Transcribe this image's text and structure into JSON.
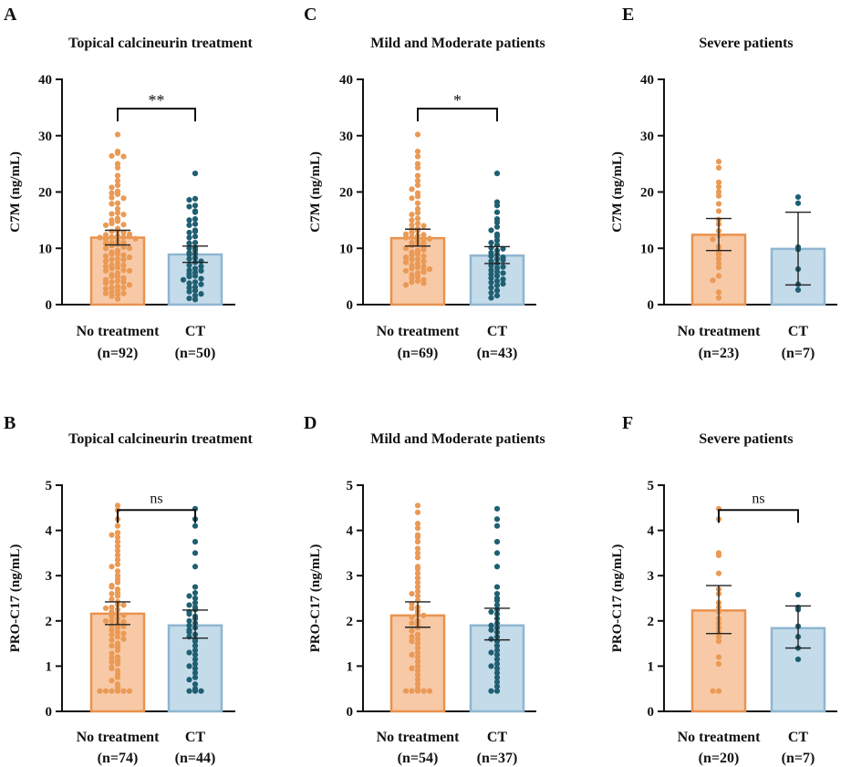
{
  "chart_data": [
    {
      "panel": "A",
      "type": "bar",
      "title": "Topical calcineurin treatment",
      "ylabel": "C7M (ng/mL)",
      "ylim": [
        0,
        40
      ],
      "yticks": [
        0,
        10,
        20,
        30,
        40
      ],
      "categories": [
        "No treatment",
        "CT"
      ],
      "category_n": [
        "(n=92)",
        "(n=50)"
      ],
      "means": [
        11.9,
        8.9
      ],
      "ci_low": [
        10.6,
        7.5
      ],
      "ci_high": [
        13.2,
        10.4
      ],
      "significance": "**",
      "colors": {
        "bar_fill": [
          "#f7c9a6",
          "#c4dbe9"
        ],
        "bar_edge": [
          "#e8924f",
          "#8fb6d1"
        ],
        "dots": [
          "#ea9a55",
          "#1f5f72"
        ]
      },
      "points": [
        [
          30.2,
          27.2,
          26.9,
          26.4,
          26.3,
          25.0,
          24.3,
          22.9,
          22.0,
          21.2,
          20.8,
          20.1,
          19.8,
          19.6,
          19.0,
          18.9,
          18.0,
          17.9,
          17.0,
          16.3,
          16.1,
          16.0,
          15.3,
          15.0,
          14.8,
          14.4,
          14.2,
          14.1,
          13.5,
          13.1,
          13.0,
          12.8,
          12.4,
          12.2,
          12.0,
          12.0,
          11.6,
          11.3,
          11.0,
          11.0,
          10.9,
          10.7,
          10.5,
          10.2,
          10.0,
          10.0,
          9.6,
          9.3,
          9.0,
          9.0,
          8.8,
          8.6,
          8.4,
          8.1,
          8.0,
          8.0,
          7.7,
          7.3,
          7.0,
          7.0,
          6.8,
          6.6,
          6.4,
          6.1,
          6.0,
          6.0,
          5.6,
          5.3,
          5.0,
          5.0,
          4.7,
          4.4,
          4.2,
          4.0,
          4.0,
          3.8,
          3.5,
          3.2,
          3.0,
          3.0,
          2.8,
          2.5,
          2.2,
          2.0,
          2.0,
          1.8,
          1.5,
          1.0,
          12.5,
          12.1,
          11.9,
          11.7
        ],
        [
          23.3,
          18.8,
          18.6,
          17.6,
          17.4,
          16.6,
          16.4,
          15.2,
          15.0,
          14.3,
          14.1,
          13.2,
          13.0,
          12.1,
          11.9,
          11.0,
          10.9,
          10.1,
          10.0,
          9.6,
          9.2,
          9.0,
          8.9,
          8.3,
          8.1,
          7.7,
          7.5,
          7.0,
          6.8,
          6.4,
          6.1,
          6.0,
          5.7,
          5.5,
          5.1,
          5.0,
          4.6,
          4.4,
          4.0,
          3.8,
          3.6,
          3.1,
          3.0,
          2.5,
          2.3,
          1.9,
          1.6,
          1.1,
          0.9,
          12.8
        ]
      ]
    },
    {
      "panel": "C",
      "type": "bar",
      "title": "Mild and Moderate patients",
      "ylabel": "C7M (ng/mL)",
      "ylim": [
        0,
        40
      ],
      "yticks": [
        0,
        10,
        20,
        30,
        40
      ],
      "categories": [
        "No treatment",
        "CT"
      ],
      "category_n": [
        "(n=69)",
        "(n=43)"
      ],
      "means": [
        11.8,
        8.7
      ],
      "ci_low": [
        10.4,
        7.3
      ],
      "ci_high": [
        13.4,
        10.3
      ],
      "significance": "*",
      "colors": {
        "bar_fill": [
          "#f7c9a6",
          "#c4dbe9"
        ],
        "bar_edge": [
          "#e8924f",
          "#8fb6d1"
        ],
        "dots": [
          "#ea9a55",
          "#1f5f72"
        ]
      },
      "points": [
        [
          30.2,
          27.2,
          26.3,
          25.0,
          24.3,
          22.9,
          22.0,
          21.2,
          20.5,
          19.8,
          19.2,
          18.9,
          18.0,
          17.0,
          16.3,
          16.0,
          15.3,
          15.0,
          14.4,
          14.1,
          13.5,
          13.1,
          12.8,
          12.4,
          12.2,
          12.0,
          11.6,
          11.3,
          11.0,
          10.9,
          10.7,
          10.5,
          10.2,
          10.0,
          9.6,
          9.3,
          9.0,
          8.8,
          8.6,
          8.4,
          8.1,
          8.0,
          7.7,
          7.3,
          7.0,
          6.8,
          6.6,
          6.4,
          6.1,
          6.0,
          5.6,
          5.3,
          5.0,
          4.7,
          4.4,
          4.2,
          4.0,
          3.8,
          3.5,
          11.9,
          11.7,
          12.5,
          13.3,
          14.0,
          9.7,
          8.3,
          7.5,
          6.3,
          5.8
        ],
        [
          23.3,
          18.2,
          17.6,
          16.4,
          15.2,
          14.6,
          13.8,
          13.2,
          12.5,
          12.1,
          11.4,
          11.0,
          10.6,
          10.1,
          9.6,
          9.2,
          8.9,
          8.6,
          8.1,
          7.7,
          7.3,
          6.9,
          6.5,
          6.1,
          5.8,
          5.4,
          5.1,
          4.7,
          4.2,
          3.9,
          3.4,
          3.0,
          2.5,
          2.1,
          1.6,
          1.2,
          9.9,
          8.4,
          7.9,
          6.7,
          5.6,
          4.5,
          3.7
        ]
      ]
    },
    {
      "panel": "E",
      "type": "bar",
      "title": "Severe patients",
      "ylabel": "C7M (ng/mL)",
      "ylim": [
        0,
        40
      ],
      "yticks": [
        0,
        10,
        20,
        30,
        40
      ],
      "categories": [
        "No treatment",
        "CT"
      ],
      "category_n": [
        "(n=23)",
        "(n=7)"
      ],
      "means": [
        12.4,
        9.9
      ],
      "ci_low": [
        9.6,
        3.5
      ],
      "ci_high": [
        15.3,
        16.4
      ],
      "significance": "",
      "colors": {
        "bar_fill": [
          "#f7c9a6",
          "#c4dbe9"
        ],
        "bar_edge": [
          "#e8924f",
          "#8fb6d1"
        ],
        "dots": [
          "#ea9a55",
          "#1f5f72"
        ]
      },
      "points": [
        [
          25.4,
          24.3,
          21.7,
          20.9,
          20.0,
          19.3,
          17.9,
          16.6,
          15.1,
          14.3,
          13.1,
          12.3,
          11.6,
          10.3,
          9.6,
          8.9,
          8.1,
          7.3,
          6.6,
          5.1,
          4.3,
          2.2,
          1.2
        ],
        [
          19.1,
          18.0,
          10.2,
          9.8,
          6.3,
          3.6,
          2.6
        ]
      ]
    },
    {
      "panel": "B",
      "type": "bar",
      "title": "Topical calcineurin treatment",
      "ylabel": "PRO-C17 (ng/mL)",
      "ylim": [
        0,
        5
      ],
      "yticks": [
        0,
        1,
        2,
        3,
        4,
        5
      ],
      "categories": [
        "No treatment",
        "CT"
      ],
      "category_n": [
        "(n=74)",
        "(n=44)"
      ],
      "means": [
        2.16,
        1.9
      ],
      "ci_low": [
        1.92,
        1.62
      ],
      "ci_high": [
        2.42,
        2.24
      ],
      "significance": "ns",
      "colors": {
        "bar_fill": [
          "#f7c9a6",
          "#c4dbe9"
        ],
        "bar_edge": [
          "#e8924f",
          "#8fb6d1"
        ],
        "dots": [
          "#ea9a55",
          "#1f5f72"
        ]
      },
      "points": [
        [
          4.55,
          4.45,
          4.25,
          4.1,
          3.95,
          3.9,
          3.85,
          3.75,
          3.65,
          3.55,
          3.45,
          3.35,
          3.25,
          3.1,
          3.0,
          2.92,
          2.85,
          2.78,
          2.7,
          2.62,
          2.55,
          2.48,
          2.42,
          2.36,
          2.3,
          2.25,
          2.2,
          2.15,
          2.1,
          2.05,
          2.0,
          1.95,
          1.9,
          1.85,
          1.8,
          1.75,
          1.7,
          1.65,
          1.58,
          1.5,
          1.42,
          1.35,
          1.28,
          1.2,
          1.12,
          1.05,
          0.98,
          0.9,
          0.82,
          0.75,
          0.68,
          0.6,
          0.52,
          0.45,
          0.45,
          0.45,
          0.45,
          0.45,
          0.45,
          2.35,
          2.28,
          2.12,
          1.98,
          1.88,
          1.6,
          1.45,
          1.18,
          2.6,
          2.75,
          3.2,
          2.0,
          1.72,
          1.1,
          0.95
        ],
        [
          4.48,
          4.25,
          4.1,
          3.75,
          3.5,
          3.2,
          2.75,
          2.62,
          2.5,
          2.4,
          2.3,
          2.25,
          2.2,
          2.1,
          2.05,
          2.0,
          1.95,
          1.85,
          1.8,
          1.7,
          1.6,
          1.55,
          1.45,
          1.35,
          1.25,
          1.15,
          1.05,
          0.95,
          0.85,
          0.75,
          0.7,
          0.6,
          0.5,
          0.45,
          0.45,
          0.45,
          2.15,
          1.9,
          1.65,
          1.3,
          1.0,
          2.55,
          2.35,
          1.75
        ]
      ]
    },
    {
      "panel": "D",
      "type": "bar",
      "title": "Mild and Moderate patients",
      "ylabel": "PRO-C17 (ng/mL)",
      "ylim": [
        0,
        5
      ],
      "yticks": [
        0,
        1,
        2,
        3,
        4,
        5
      ],
      "categories": [
        "No treatment",
        "CT"
      ],
      "category_n": [
        "(n=54)",
        "(n=37)"
      ],
      "means": [
        2.12,
        1.9
      ],
      "ci_low": [
        1.86,
        1.58
      ],
      "ci_high": [
        2.42,
        2.28
      ],
      "significance": "",
      "colors": {
        "bar_fill": [
          "#f7c9a6",
          "#c4dbe9"
        ],
        "bar_edge": [
          "#e8924f",
          "#8fb6d1"
        ],
        "dots": [
          "#ea9a55",
          "#1f5f72"
        ]
      },
      "points": [
        [
          4.55,
          4.4,
          4.15,
          4.05,
          3.9,
          3.85,
          3.75,
          3.6,
          3.5,
          3.4,
          3.2,
          3.05,
          2.95,
          2.85,
          2.75,
          2.65,
          2.55,
          2.45,
          2.38,
          2.3,
          2.22,
          2.15,
          2.08,
          2.0,
          1.92,
          1.85,
          1.78,
          1.7,
          1.6,
          1.5,
          1.4,
          1.3,
          1.2,
          1.1,
          1.0,
          0.9,
          0.8,
          0.7,
          0.6,
          0.5,
          0.45,
          0.45,
          0.45,
          0.45,
          0.45,
          2.28,
          2.12,
          1.95,
          1.65,
          1.25,
          0.95,
          2.6,
          3.15,
          1.55
        ],
        [
          4.48,
          4.25,
          4.1,
          3.75,
          3.5,
          3.2,
          2.75,
          2.6,
          2.45,
          2.35,
          2.25,
          2.15,
          2.05,
          1.95,
          1.85,
          1.75,
          1.65,
          1.55,
          1.45,
          1.35,
          1.25,
          1.15,
          1.05,
          0.95,
          0.85,
          0.75,
          0.65,
          0.55,
          0.45,
          0.45,
          2.2,
          1.9,
          1.6,
          1.3,
          1.0,
          2.5,
          1.8
        ]
      ]
    },
    {
      "panel": "F",
      "type": "bar",
      "title": "Severe patients",
      "ylabel": "PRO-C17 (ng/mL)",
      "ylim": [
        0,
        5
      ],
      "yticks": [
        0,
        1,
        2,
        3,
        4,
        5
      ],
      "categories": [
        "No treatment",
        "CT"
      ],
      "category_n": [
        "(n=20)",
        "(n=7)"
      ],
      "means": [
        2.23,
        1.84
      ],
      "ci_low": [
        1.72,
        1.4
      ],
      "ci_high": [
        2.78,
        2.33
      ],
      "significance": "ns",
      "colors": {
        "bar_fill": [
          "#f7c9a6",
          "#c4dbe9"
        ],
        "bar_edge": [
          "#e8924f",
          "#8fb6d1"
        ],
        "dots": [
          "#ea9a55",
          "#1f5f72"
        ]
      },
      "points": [
        [
          4.48,
          4.25,
          3.5,
          3.45,
          3.05,
          2.7,
          2.6,
          2.4,
          2.3,
          2.2,
          2.05,
          1.95,
          1.85,
          1.75,
          1.65,
          1.55,
          1.2,
          1.05,
          0.45,
          0.45
        ],
        [
          2.58,
          2.3,
          2.25,
          1.88,
          1.65,
          1.4,
          1.15
        ]
      ]
    }
  ]
}
